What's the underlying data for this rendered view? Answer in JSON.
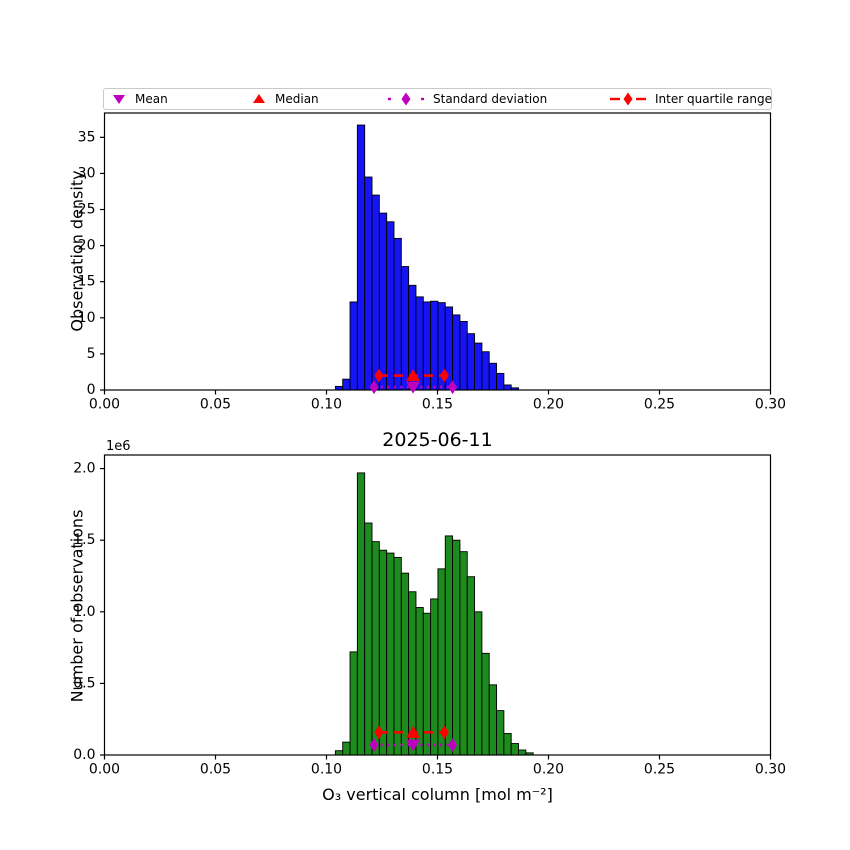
{
  "figure": {
    "xlabel": "O₃ vertical column [mol m⁻²]",
    "background_color": "#ffffff"
  },
  "legend": {
    "position": "top",
    "items": [
      {
        "label": "Mean",
        "marker": "triangle-down",
        "color": "#bf00bf"
      },
      {
        "label": "Median",
        "marker": "triangle-up",
        "color": "#ff0000"
      },
      {
        "label": "Standard deviation",
        "marker": "diamond-dotted-line",
        "color": "#bf00bf"
      },
      {
        "label": "Inter quartile range",
        "marker": "diamond-dashed-line",
        "color": "#ff0000"
      }
    ]
  },
  "chart_data": [
    {
      "type": "bar",
      "title": "",
      "ylabel": "Observation density",
      "xlim": [
        0.0,
        0.3
      ],
      "ylim": [
        0,
        38.37
      ],
      "grid": false,
      "xticks": [
        0.0,
        0.05,
        0.1,
        0.15,
        0.2,
        0.25,
        0.3
      ],
      "xtick_labels": [
        "0.00",
        "0.05",
        "0.10",
        "0.15",
        "0.20",
        "0.25",
        "0.30"
      ],
      "yticks": [
        0,
        5,
        10,
        15,
        20,
        25,
        30,
        35
      ],
      "ytick_labels": [
        "0",
        "5",
        "10",
        "15",
        "20",
        "25",
        "30",
        "35"
      ],
      "bin_start": 0.104,
      "bin_width": 0.0033,
      "values": [
        0.5,
        1.5,
        12.2,
        36.7,
        29.5,
        27.0,
        24.5,
        23.3,
        21.0,
        17.1,
        14.5,
        12.9,
        12.2,
        12.3,
        12.1,
        11.5,
        10.4,
        9.5,
        7.8,
        6.5,
        5.3,
        3.7,
        2.3,
        0.7,
        0.3
      ],
      "bar_color": "#1414f5",
      "bar_edge_color": "#000000",
      "markers": {
        "mean_x": 0.139,
        "median_x": 0.139,
        "std_range": [
          0.1214,
          0.1568
        ],
        "std_line_y": 0.4,
        "iqr_range": [
          0.1236,
          0.1531
        ],
        "iqr_line_y": 2.0,
        "mean_color": "#bf00bf",
        "median_color": "#ff0000"
      }
    },
    {
      "type": "bar",
      "title": "2025-06-11",
      "ylabel": "Number of observations",
      "offset_label": "1e6",
      "xlim": [
        0.0,
        0.3
      ],
      "ylim": [
        0,
        2095000
      ],
      "grid": false,
      "xticks": [
        0.0,
        0.05,
        0.1,
        0.15,
        0.2,
        0.25,
        0.3
      ],
      "xtick_labels": [
        "0.00",
        "0.05",
        "0.10",
        "0.15",
        "0.20",
        "0.25",
        "0.30"
      ],
      "yticks": [
        0,
        500000,
        1000000,
        1500000,
        2000000
      ],
      "ytick_labels": [
        "0.0",
        "0.5",
        "1.0",
        "1.5",
        "2.0"
      ],
      "bin_start": 0.104,
      "bin_width": 0.0033,
      "values": [
        30000,
        90000,
        720000,
        1970000,
        1620000,
        1490000,
        1430000,
        1410000,
        1380000,
        1270000,
        1140000,
        1030000,
        990000,
        1090000,
        1300000,
        1530000,
        1500000,
        1420000,
        1245000,
        1000000,
        710000,
        490000,
        310000,
        150000,
        80000,
        35000,
        15000
      ],
      "bar_color": "#1e8b1e",
      "bar_edge_color": "#000000",
      "markers": {
        "mean_x": 0.139,
        "median_x": 0.139,
        "std_range": [
          0.1214,
          0.1568
        ],
        "std_line_y": 70000,
        "iqr_range": [
          0.1236,
          0.1531
        ],
        "iqr_line_y": 158000,
        "mean_color": "#bf00bf",
        "median_color": "#ff0000"
      }
    }
  ]
}
